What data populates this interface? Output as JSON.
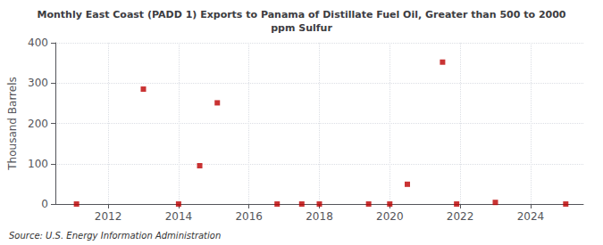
{
  "chart_data": {
    "type": "scatter",
    "title": "Monthly East Coast (PADD 1) Exports to Panama of Distillate Fuel Oil, Greater than 500 to 2000\nppm Sulfur",
    "ylabel": "Thousand Barrels",
    "annotation": "Source: U.S. Energy Information Administration",
    "x": [
      2011.1,
      2013.0,
      2014.0,
      2014.6,
      2015.1,
      2016.8,
      2017.5,
      2018.0,
      2019.4,
      2020.0,
      2020.5,
      2021.5,
      2021.9,
      2023.0,
      2025.0
    ],
    "values": [
      0,
      285,
      0,
      95,
      251,
      0,
      0,
      0,
      0,
      0,
      49,
      352,
      0,
      4,
      0
    ],
    "color": "#bb0000",
    "marker": "square",
    "xlim": [
      2010.5,
      2025.5
    ],
    "ylim": [
      0,
      400
    ],
    "xticks": [
      2012,
      2014,
      2016,
      2018,
      2020,
      2022,
      2024
    ],
    "yticks": [
      0,
      100,
      200,
      300,
      400
    ],
    "grid": true
  }
}
